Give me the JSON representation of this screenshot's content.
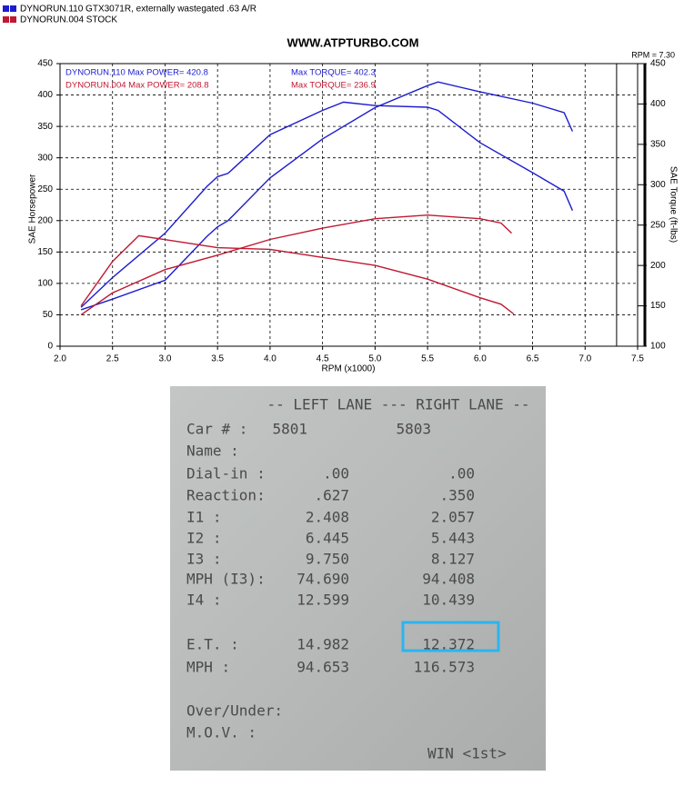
{
  "chart_data": {
    "type": "line",
    "title": "WWW.ATPTURBO.COM",
    "legend": [
      {
        "label": "DYNORUN.110  GTX3071R, externally wastegated .63 A/R",
        "color": "#1c1ccf"
      },
      {
        "label": "DYNORUN.004  STOCK",
        "color": "#c01830"
      }
    ],
    "xlabel": "RPM (x1000)",
    "ylabel": "SAE Horsepower",
    "y2label": "SAE Torque (ft-lbs)",
    "xlim": [
      2.0,
      7.5
    ],
    "xticks": [
      {
        "value": 2.0,
        "label": "2.0"
      },
      {
        "value": 2.5,
        "label": "2.5"
      },
      {
        "value": 3.0,
        "label": "3.0"
      },
      {
        "value": 3.5,
        "label": "3.5"
      },
      {
        "value": 4.0,
        "label": "4.0"
      },
      {
        "value": 4.5,
        "label": "4.5"
      },
      {
        "value": 5.0,
        "label": "5.0"
      },
      {
        "value": 5.5,
        "label": "5.5"
      },
      {
        "value": 6.0,
        "label": "6.0"
      },
      {
        "value": 6.5,
        "label": "6.5"
      },
      {
        "value": 7.0,
        "label": "7.0"
      },
      {
        "value": 7.5,
        "label": "7.5"
      }
    ],
    "ylim": [
      0,
      450
    ],
    "yticks": [
      0,
      50,
      100,
      150,
      200,
      250,
      300,
      350,
      400,
      450
    ],
    "y2lim": [
      100,
      450
    ],
    "y2ticks": [
      100,
      150,
      200,
      250,
      300,
      350,
      400,
      450
    ],
    "grid": true,
    "marker": {
      "value": 7.3,
      "label": "RPM = 7.30"
    },
    "annotations": [
      {
        "text": "DYNORUN.110  Max POWER= 420.8",
        "color": "#1c1ccf"
      },
      {
        "text": "Max TORQUE= 402.3",
        "color": "#1c1ccf"
      },
      {
        "text": "DYNORUN.004  Max POWER= 208.8",
        "color": "#c01830"
      },
      {
        "text": "Max TORQUE= 236.9",
        "color": "#c01830"
      }
    ],
    "series": [
      {
        "color": "#1c1ccf",
        "axis": "y",
        "x": [
          2.2,
          2.5,
          3.0,
          3.4,
          3.5,
          3.6,
          4.0,
          4.5,
          5.0,
          5.5,
          5.6,
          6.0,
          6.5,
          6.8,
          6.88
        ],
        "values": [
          58,
          75,
          105,
          175,
          190,
          200,
          268,
          330,
          380,
          415,
          420.8,
          405,
          387,
          372,
          342
        ]
      },
      {
        "color": "#1c1ccf",
        "axis": "y2",
        "x": [
          2.2,
          2.5,
          3.0,
          3.4,
          3.5,
          3.6,
          4.0,
          4.5,
          4.7,
          5.0,
          5.5,
          5.6,
          6.0,
          6.5,
          6.8,
          6.88
        ],
        "values": [
          148,
          185,
          240,
          298,
          310,
          314,
          362,
          392,
          402.3,
          398,
          396,
          392,
          352,
          315,
          292,
          268
        ]
      },
      {
        "color": "#c01830",
        "axis": "y",
        "x": [
          2.2,
          2.5,
          3.0,
          3.5,
          4.0,
          4.5,
          5.0,
          5.5,
          6.0,
          6.2,
          6.3
        ],
        "values": [
          50,
          85,
          122,
          145,
          170,
          188,
          203,
          208.8,
          203,
          196,
          180
        ]
      },
      {
        "color": "#c01830",
        "axis": "y2",
        "x": [
          2.2,
          2.5,
          2.75,
          3.0,
          3.5,
          4.0,
          4.5,
          5.0,
          5.5,
          6.0,
          6.2,
          6.32
        ],
        "values": [
          150,
          205,
          236.9,
          232,
          222,
          220,
          210,
          200,
          183,
          160,
          152,
          140
        ]
      }
    ]
  },
  "timeslip": {
    "header": "-- LEFT LANE --- RIGHT LANE --",
    "rows": [
      [
        "Car #  :",
        "5801",
        "5803"
      ],
      [
        "Name   :"
      ],
      [
        "Dial-in :",
        ".00",
        ".00"
      ],
      [
        "Reaction:",
        ".627",
        ".350"
      ],
      [
        "I1     :",
        "2.408",
        "2.057"
      ],
      [
        "I2     :",
        "6.445",
        "5.443"
      ],
      [
        "I3     :",
        "9.750",
        "8.127"
      ],
      [
        "MPH (I3):",
        "74.690",
        "94.408"
      ],
      [
        "I4     :",
        "12.599",
        "10.439"
      ],
      [
        "E.T.   :",
        "14.982",
        "12.372"
      ],
      [
        "MPH    :",
        "94.653",
        "116.573"
      ],
      [
        "Over/Under:"
      ],
      [
        "M.O.V.  :"
      ]
    ],
    "result": "WIN <1st>"
  }
}
